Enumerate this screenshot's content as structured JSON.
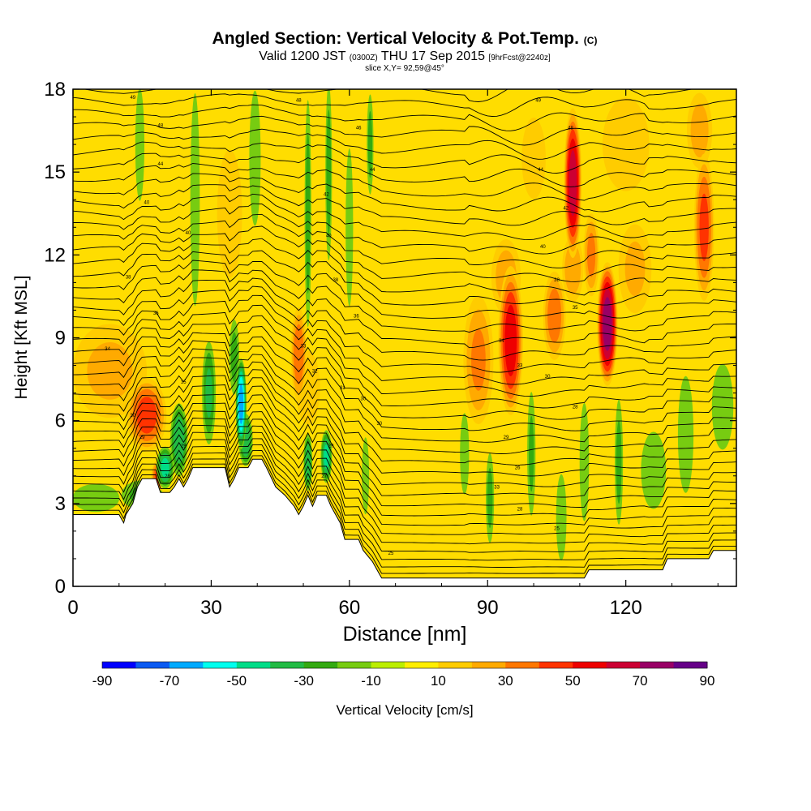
{
  "header": {
    "title": "Angled Section: Vertical Velocity & Pot.Temp.",
    "title_units": "(C)",
    "valid_prefix": "Valid 1200 JST",
    "valid_utc": "(0300Z)",
    "valid_date": "THU 17 Sep 2015",
    "forecast": "[9hrFcst@2240z]",
    "slice": "slice X,Y= 92,59@45°"
  },
  "chart_data": {
    "type": "heatmap",
    "xlabel": "Distance [nm]",
    "ylabel": "Height [Kft MSL]",
    "xlim": [
      0,
      144
    ],
    "ylim": [
      0,
      18
    ],
    "x_ticks": [
      0,
      30,
      60,
      90,
      120
    ],
    "y_ticks": [
      0,
      3,
      6,
      9,
      12,
      15,
      18
    ],
    "colorbar": {
      "label": "Vertical Velocity [cm/s]",
      "tick_labels": [
        "-90",
        "-70",
        "-50",
        "-30",
        "-10",
        "10",
        "30",
        "50",
        "70",
        "90"
      ],
      "levels": [
        -90,
        -80,
        -70,
        -60,
        -50,
        -40,
        -30,
        -20,
        -10,
        0,
        10,
        20,
        30,
        40,
        50,
        60,
        70,
        80,
        90
      ],
      "colors": [
        "#0000ff",
        "#0a5af2",
        "#00aaff",
        "#00ffee",
        "#00dd88",
        "#22bb44",
        "#33aa11",
        "#77cc11",
        "#bbee00",
        "#ffee00",
        "#ffcc00",
        "#ffaa00",
        "#ff7700",
        "#ff3300",
        "#ee0000",
        "#cc0033",
        "#990066",
        "#660088"
      ]
    },
    "terrain": [
      [
        0,
        2.6
      ],
      [
        10,
        2.6
      ],
      [
        11,
        2.3
      ],
      [
        11.5,
        2.6
      ],
      [
        13,
        3.0
      ],
      [
        14,
        3.6
      ],
      [
        15,
        3.9
      ],
      [
        18,
        3.9
      ],
      [
        19,
        3.4
      ],
      [
        21,
        3.4
      ],
      [
        22,
        3.6
      ],
      [
        23,
        3.9
      ],
      [
        24,
        3.6
      ],
      [
        25,
        3.9
      ],
      [
        26,
        4.3
      ],
      [
        33,
        4.3
      ],
      [
        34,
        3.6
      ],
      [
        35,
        3.9
      ],
      [
        36,
        4.3
      ],
      [
        38,
        4.3
      ],
      [
        39,
        4.6
      ],
      [
        41,
        4.6
      ],
      [
        42,
        4.3
      ],
      [
        44,
        3.6
      ],
      [
        46,
        3.3
      ],
      [
        48,
        2.9
      ],
      [
        49,
        2.6
      ],
      [
        50,
        2.9
      ],
      [
        51,
        3.3
      ],
      [
        52,
        2.9
      ],
      [
        53,
        3.3
      ],
      [
        54,
        3.3
      ],
      [
        55,
        3.3
      ],
      [
        56,
        2.9
      ],
      [
        57,
        2.6
      ],
      [
        58,
        2.3
      ],
      [
        59,
        1.7
      ],
      [
        62,
        1.7
      ],
      [
        63,
        1.3
      ],
      [
        65,
        0.9
      ],
      [
        66,
        0.6
      ],
      [
        67,
        0.3
      ],
      [
        68,
        0.3
      ],
      [
        72,
        0.3
      ],
      [
        80,
        0.3
      ],
      [
        90,
        0.3
      ],
      [
        100,
        0.3
      ],
      [
        111,
        0.3
      ],
      [
        112,
        0.6
      ],
      [
        128,
        0.6
      ],
      [
        129,
        1.0
      ],
      [
        138,
        1.0
      ],
      [
        139,
        1.3
      ],
      [
        144,
        1.3
      ]
    ],
    "updrafts": [
      {
        "x": 16,
        "y": 6.2,
        "sx": 4.5,
        "sy": 1.4,
        "v": 44
      },
      {
        "x": 18.5,
        "y": 4.0,
        "sx": 1.6,
        "sy": 0.6,
        "v": 42
      },
      {
        "x": 8,
        "y": 7.8,
        "sx": 9,
        "sy": 1.9,
        "v": 20
      },
      {
        "x": 49,
        "y": 8.4,
        "sx": 1.8,
        "sy": 1.8,
        "v": 38
      },
      {
        "x": 51,
        "y": 7.2,
        "sx": 3,
        "sy": 1.5,
        "v": 18
      },
      {
        "x": 88,
        "y": 8.2,
        "sx": 3.5,
        "sy": 2.5,
        "v": 30
      },
      {
        "x": 95,
        "y": 8.9,
        "sx": 2.8,
        "sy": 2.8,
        "v": 56
      },
      {
        "x": 94,
        "y": 11.2,
        "sx": 3.5,
        "sy": 1.5,
        "v": 24
      },
      {
        "x": 104.5,
        "y": 9.8,
        "sx": 2.6,
        "sy": 1.7,
        "v": 36
      },
      {
        "x": 108.5,
        "y": 14.6,
        "sx": 2.0,
        "sy": 2.8,
        "v": 66
      },
      {
        "x": 108.5,
        "y": 11.5,
        "sx": 2.5,
        "sy": 1.3,
        "v": 28
      },
      {
        "x": 116,
        "y": 9.5,
        "sx": 2.3,
        "sy": 2.3,
        "v": 78
      },
      {
        "x": 112.5,
        "y": 12.0,
        "sx": 1.8,
        "sy": 1.6,
        "v": 32
      },
      {
        "x": 122,
        "y": 11.5,
        "sx": 4.0,
        "sy": 1.8,
        "v": 20
      },
      {
        "x": 137,
        "y": 13.0,
        "sx": 2.3,
        "sy": 2.8,
        "v": 42
      },
      {
        "x": 136,
        "y": 16.5,
        "sx": 3.0,
        "sy": 1.5,
        "v": 24
      },
      {
        "x": 120,
        "y": 16.0,
        "sx": 6.0,
        "sy": 2.0,
        "v": 14
      },
      {
        "x": 100,
        "y": 15.5,
        "sx": 3.0,
        "sy": 1.7,
        "v": 16
      },
      {
        "x": 70,
        "y": 11.0,
        "sx": 10.0,
        "sy": 3.0,
        "v": 8
      },
      {
        "x": 34,
        "y": 13.5,
        "sx": 3.5,
        "sy": 3.0,
        "v": 10
      }
    ],
    "downdrafts": [
      {
        "x": 23,
        "y": 5.3,
        "sx": 2.0,
        "sy": 1.4,
        "v": -38
      },
      {
        "x": 20,
        "y": 4.3,
        "sx": 2.0,
        "sy": 0.8,
        "v": -42
      },
      {
        "x": 29.5,
        "y": 7.0,
        "sx": 1.6,
        "sy": 2.0,
        "v": -30
      },
      {
        "x": 36.5,
        "y": 6.6,
        "sx": 1.2,
        "sy": 1.7,
        "v": -66
      },
      {
        "x": 37.5,
        "y": 5.3,
        "sx": 1.6,
        "sy": 1.0,
        "v": -38
      },
      {
        "x": 35,
        "y": 8.3,
        "sx": 1.2,
        "sy": 1.5,
        "v": -22
      },
      {
        "x": 15,
        "y": 3.3,
        "sx": 5.0,
        "sy": 0.6,
        "v": -20
      },
      {
        "x": 5,
        "y": 3.2,
        "sx": 6.0,
        "sy": 0.6,
        "v": -14
      },
      {
        "x": 51,
        "y": 4.5,
        "sx": 1.0,
        "sy": 1.1,
        "v": -38
      },
      {
        "x": 55,
        "y": 4.7,
        "sx": 1.3,
        "sy": 1.0,
        "v": -42
      },
      {
        "x": 51,
        "y": 13.5,
        "sx": 0.8,
        "sy": 4.5,
        "v": -24
      },
      {
        "x": 55.5,
        "y": 15.0,
        "sx": 0.8,
        "sy": 3.5,
        "v": -24
      },
      {
        "x": 26.5,
        "y": 14.0,
        "sx": 1.2,
        "sy": 4.5,
        "v": -15
      },
      {
        "x": 14.5,
        "y": 16.0,
        "sx": 1.2,
        "sy": 2.5,
        "v": -12
      },
      {
        "x": 39.5,
        "y": 15.5,
        "sx": 1.5,
        "sy": 3.0,
        "v": -12
      },
      {
        "x": 64.5,
        "y": 16.0,
        "sx": 0.8,
        "sy": 2.0,
        "v": -22
      },
      {
        "x": 60,
        "y": 13.0,
        "sx": 1.0,
        "sy": 3.5,
        "v": -12
      },
      {
        "x": 90.5,
        "y": 3.2,
        "sx": 1.0,
        "sy": 1.8,
        "v": -22
      },
      {
        "x": 99.5,
        "y": 4.8,
        "sx": 1.0,
        "sy": 2.5,
        "v": -20
      },
      {
        "x": 106,
        "y": 2.5,
        "sx": 1.3,
        "sy": 1.8,
        "v": -16
      },
      {
        "x": 111,
        "y": 4.5,
        "sx": 1.2,
        "sy": 2.5,
        "v": -15
      },
      {
        "x": 118.5,
        "y": 4.5,
        "sx": 1.0,
        "sy": 2.5,
        "v": -22
      },
      {
        "x": 133,
        "y": 5.5,
        "sx": 2.0,
        "sy": 2.5,
        "v": -14
      },
      {
        "x": 141,
        "y": 6.5,
        "sx": 3.0,
        "sy": 2.0,
        "v": -10
      },
      {
        "x": 85,
        "y": 4.8,
        "sx": 1.2,
        "sy": 1.8,
        "v": -12
      },
      {
        "x": 63.5,
        "y": 4.0,
        "sx": 1.0,
        "sy": 1.8,
        "v": -10
      },
      {
        "x": 126,
        "y": 4.2,
        "sx": 3.5,
        "sy": 1.8,
        "v": -10
      }
    ],
    "isentrope_labels": [
      {
        "x": 13,
        "y": 17.7,
        "text": "49"
      },
      {
        "x": 19,
        "y": 16.7,
        "text": "48"
      },
      {
        "x": 19,
        "y": 15.3,
        "text": "44"
      },
      {
        "x": 16,
        "y": 13.9,
        "text": "40"
      },
      {
        "x": 25,
        "y": 12.8,
        "text": "40"
      },
      {
        "x": 12,
        "y": 11.2,
        "text": "38"
      },
      {
        "x": 18,
        "y": 9.9,
        "text": "36"
      },
      {
        "x": 7.5,
        "y": 8.6,
        "text": "34"
      },
      {
        "x": 24,
        "y": 7.4,
        "text": "35"
      },
      {
        "x": 13,
        "y": 6.2,
        "text": "30"
      },
      {
        "x": 15,
        "y": 5.4,
        "text": "29"
      },
      {
        "x": 24,
        "y": 5.1,
        "text": "29"
      },
      {
        "x": 20.5,
        "y": 4.0,
        "text": "28"
      },
      {
        "x": 49,
        "y": 17.6,
        "text": "48"
      },
      {
        "x": 62,
        "y": 16.6,
        "text": "46"
      },
      {
        "x": 65,
        "y": 15.1,
        "text": "44"
      },
      {
        "x": 55,
        "y": 14.2,
        "text": "42"
      },
      {
        "x": 55.5,
        "y": 12.7,
        "text": "40"
      },
      {
        "x": 57,
        "y": 11.1,
        "text": "38"
      },
      {
        "x": 61.5,
        "y": 9.8,
        "text": "36"
      },
      {
        "x": 50,
        "y": 8.7,
        "text": "33"
      },
      {
        "x": 52.5,
        "y": 7.8,
        "text": "32"
      },
      {
        "x": 58.5,
        "y": 7.2,
        "text": "31"
      },
      {
        "x": 63,
        "y": 6.8,
        "text": "30"
      },
      {
        "x": 66.5,
        "y": 5.9,
        "text": "30"
      },
      {
        "x": 56,
        "y": 5.1,
        "text": "29"
      },
      {
        "x": 54.5,
        "y": 4.0,
        "text": "27"
      },
      {
        "x": 101,
        "y": 17.6,
        "text": "49"
      },
      {
        "x": 108,
        "y": 16.6,
        "text": "48"
      },
      {
        "x": 101.5,
        "y": 15.1,
        "text": "44"
      },
      {
        "x": 107,
        "y": 13.7,
        "text": "42"
      },
      {
        "x": 102,
        "y": 12.3,
        "text": "40"
      },
      {
        "x": 105,
        "y": 11.1,
        "text": "38"
      },
      {
        "x": 109,
        "y": 10.1,
        "text": "35"
      },
      {
        "x": 93,
        "y": 8.9,
        "text": "34"
      },
      {
        "x": 97,
        "y": 8.0,
        "text": "33"
      },
      {
        "x": 103,
        "y": 7.6,
        "text": "30"
      },
      {
        "x": 109,
        "y": 6.5,
        "text": "28"
      },
      {
        "x": 94,
        "y": 5.4,
        "text": "29"
      },
      {
        "x": 96.5,
        "y": 4.3,
        "text": "26"
      },
      {
        "x": 92,
        "y": 3.6,
        "text": "33"
      },
      {
        "x": 97,
        "y": 2.8,
        "text": "28"
      },
      {
        "x": 105,
        "y": 2.1,
        "text": "25"
      },
      {
        "x": 69,
        "y": 1.2,
        "text": "25"
      }
    ]
  }
}
